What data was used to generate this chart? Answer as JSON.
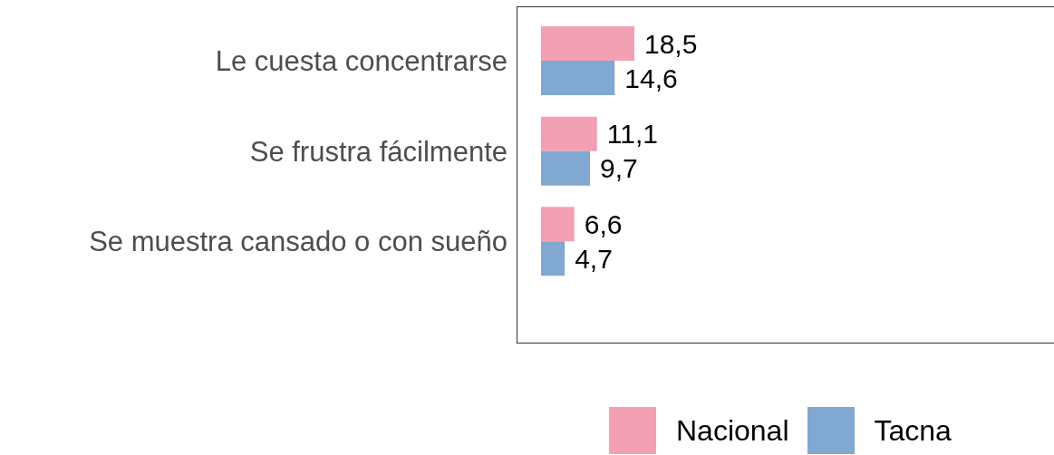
{
  "chart_data": {
    "type": "bar",
    "orientation": "horizontal",
    "categories": [
      "Le cuesta concentrarse",
      "Se frustra fácilmente",
      "Se muestra cansado o con sueño"
    ],
    "series": [
      {
        "name": "Nacional",
        "color": "#f4a0b4",
        "values": [
          18.5,
          11.1,
          6.6
        ],
        "value_labels": [
          "18,5",
          "11,1",
          "6,6"
        ]
      },
      {
        "name": "Tacna",
        "color": "#80a8d0",
        "values": [
          14.6,
          9.7,
          4.7
        ],
        "value_labels": [
          "14,6",
          "9,7",
          "4,7"
        ]
      }
    ],
    "tick_labels": "y",
    "legend": "bottom right"
  }
}
